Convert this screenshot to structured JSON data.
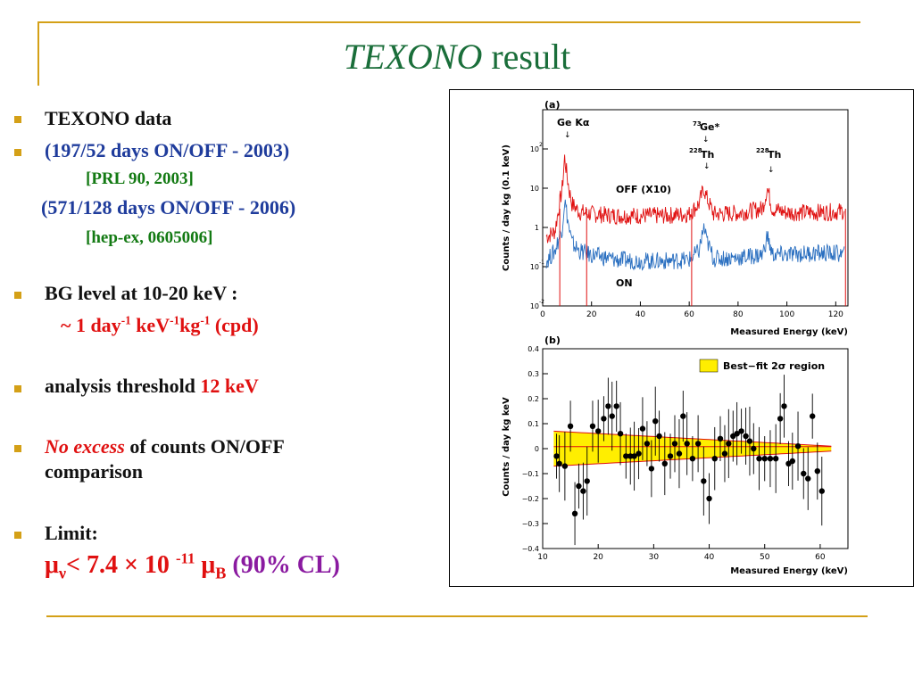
{
  "title": {
    "italic": "TEXONO",
    "rest": " result"
  },
  "bullets": {
    "b1": "TEXONO data",
    "b2": "(197/52 days ON/OFF  - 2003)",
    "ref1": "[PRL 90,  2003]",
    "b2b": "(571/128 days ON/OFF - 2006)",
    "ref2": "[hep-ex, 0605006]",
    "b3": "BG level  at 10-20 keV :",
    "cpd": {
      "p1": "~ 1  day",
      "s1": "-1",
      "p2": " keV",
      "s2": "-1",
      "p3": "kg",
      "s3": "-1",
      "p4": " (cpd)"
    },
    "b4": {
      "text": "analysis threshold ",
      "value": "12 keV"
    },
    "b5": {
      "italic": "No excess",
      "rest": " of counts ON/OFF",
      "rest2": "comparison"
    },
    "b6": "Limit:",
    "limit": {
      "mu": "μ",
      "nu": "ν",
      "lt": "< 7.4 × 10 ",
      "exp": "-11",
      "mu2": " μ",
      "B": "B",
      "cl": " (90% CL)"
    }
  },
  "colors": {
    "accent": "#d4a017",
    "title": "#1a6e3a",
    "blue": "#1f3c9c",
    "red": "#e01010",
    "green": "#137a13",
    "purple": "#8a1aa0"
  },
  "figure": {
    "panel_a": {
      "label": "(a)",
      "ylabel": "Counts / day kg (0.1 keV)",
      "xlabel": "Measured Energy (keV)",
      "xticks": [
        "0",
        "20",
        "40",
        "60",
        "80",
        "100",
        "120"
      ],
      "yticks": [
        "10",
        "10",
        "1",
        "10",
        "10"
      ],
      "ytick_exps": [
        "2",
        "",
        "",
        "-1",
        "-2"
      ],
      "ann_ge": "Ge Kα",
      "ann_73ge_num": "73",
      "ann_73ge": "Ge*",
      "ann_th1_num": "228",
      "ann_th1": "Th",
      "ann_th2_num": "228",
      "ann_th2": "Th",
      "off_label": "OFF (X10)",
      "on_label": "ON"
    },
    "panel_b": {
      "label": "(b)",
      "ylabel": "Counts / day kg keV",
      "xlabel": "Measured Energy (keV)",
      "legend": "Best−fit 2σ region",
      "xticks": [
        "10",
        "20",
        "30",
        "40",
        "50",
        "60"
      ],
      "yticks": [
        "0.4",
        "0.3",
        "0.2",
        "0.1",
        "0",
        "−0.1",
        "−0.2",
        "−0.3",
        "−0.4"
      ]
    }
  },
  "chart_data": [
    {
      "type": "line",
      "title": "",
      "xlabel": "Measured Energy (keV)",
      "ylabel": "Counts / day kg (0.1 keV)",
      "yscale": "log",
      "xlim": [
        0,
        125
      ],
      "ylim": [
        0.01,
        1000
      ],
      "series": [
        {
          "name": "OFF (X10)",
          "color": "#e01010",
          "x": [
            2,
            5,
            8,
            9,
            10,
            11,
            12,
            15,
            20,
            30,
            40,
            50,
            60,
            64,
            66,
            67,
            70,
            80,
            90,
            92,
            94,
            100,
            110,
            120,
            123
          ],
          "y": [
            0.6,
            0.8,
            10,
            60,
            20,
            8,
            4,
            2.5,
            2.2,
            2.0,
            2.0,
            2.0,
            2.2,
            4,
            10,
            6,
            2.2,
            2.3,
            3,
            10,
            3,
            2.4,
            2.4,
            2.5,
            2.6
          ]
        },
        {
          "name": "ON",
          "color": "#2a6fc0",
          "x": [
            2,
            5,
            8,
            9,
            10,
            11,
            12,
            15,
            20,
            30,
            40,
            50,
            60,
            64,
            66,
            67,
            70,
            80,
            90,
            92,
            94,
            100,
            110,
            120,
            123
          ],
          "y": [
            0.15,
            0.25,
            1,
            5,
            2,
            0.8,
            0.4,
            0.25,
            0.2,
            0.15,
            0.14,
            0.14,
            0.15,
            0.25,
            1,
            0.5,
            0.16,
            0.17,
            0.2,
            0.6,
            0.2,
            0.2,
            0.22,
            0.22,
            0.2
          ]
        }
      ]
    },
    {
      "type": "scatter",
      "title": "",
      "xlabel": "Measured Energy (keV)",
      "ylabel": "Counts / day kg keV",
      "xlim": [
        10,
        65
      ],
      "ylim": [
        -0.4,
        0.4
      ],
      "legend": "Best−fit 2σ region",
      "band_x": [
        12,
        62
      ],
      "band_upper": [
        0.07,
        0.01
      ],
      "band_lower": [
        -0.07,
        -0.01
      ],
      "points": [
        [
          12.5,
          -0.03
        ],
        [
          13,
          -0.06
        ],
        [
          14,
          -0.07
        ],
        [
          15,
          0.09
        ],
        [
          15.8,
          -0.26
        ],
        [
          16.5,
          -0.15
        ],
        [
          17.3,
          -0.17
        ],
        [
          18,
          -0.13
        ],
        [
          19,
          0.09
        ],
        [
          20,
          0.07
        ],
        [
          21,
          0.12
        ],
        [
          21.8,
          0.17
        ],
        [
          22.5,
          0.13
        ],
        [
          23.3,
          0.17
        ],
        [
          24,
          0.06
        ],
        [
          25,
          -0.03
        ],
        [
          25.8,
          -0.03
        ],
        [
          26.5,
          -0.03
        ],
        [
          27.3,
          -0.02
        ],
        [
          28,
          0.08
        ],
        [
          28.8,
          0.02
        ],
        [
          29.6,
          -0.08
        ],
        [
          30.3,
          0.11
        ],
        [
          31,
          0.05
        ],
        [
          32,
          -0.06
        ],
        [
          33,
          -0.03
        ],
        [
          33.8,
          0.02
        ],
        [
          34.6,
          -0.02
        ],
        [
          35.3,
          0.13
        ],
        [
          36,
          0.02
        ],
        [
          37,
          -0.04
        ],
        [
          38,
          0.02
        ],
        [
          39,
          -0.13
        ],
        [
          40,
          -0.2
        ],
        [
          41,
          -0.04
        ],
        [
          42,
          0.04
        ],
        [
          42.8,
          -0.02
        ],
        [
          43.5,
          0.02
        ],
        [
          44.3,
          0.05
        ],
        [
          45,
          0.06
        ],
        [
          45.8,
          0.07
        ],
        [
          46.6,
          0.05
        ],
        [
          47.3,
          0.03
        ],
        [
          48,
          0.0
        ],
        [
          49,
          -0.04
        ],
        [
          50,
          -0.04
        ],
        [
          51,
          -0.04
        ],
        [
          52,
          -0.04
        ],
        [
          52.8,
          0.12
        ],
        [
          53.5,
          0.17
        ],
        [
          54.3,
          -0.06
        ],
        [
          55,
          -0.05
        ],
        [
          56,
          0.01
        ],
        [
          57,
          -0.1
        ],
        [
          57.8,
          -0.12
        ],
        [
          58.6,
          0.13
        ],
        [
          59.5,
          -0.09
        ],
        [
          60.3,
          -0.17
        ]
      ]
    }
  ]
}
